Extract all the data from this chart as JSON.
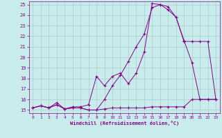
{
  "xlabel": "Windchill (Refroidissement éolien,°C)",
  "bg_color": "#c8ecec",
  "line_color": "#880088",
  "grid_color": "#aacccc",
  "xlim": [
    -0.5,
    23.5
  ],
  "ylim": [
    14.7,
    25.3
  ],
  "xticks": [
    0,
    1,
    2,
    3,
    4,
    5,
    6,
    7,
    8,
    9,
    10,
    11,
    12,
    13,
    14,
    15,
    16,
    17,
    18,
    19,
    20,
    21,
    22,
    23
  ],
  "yticks": [
    15,
    16,
    17,
    18,
    19,
    20,
    21,
    22,
    23,
    24,
    25
  ],
  "line1_x": [
    0,
    1,
    2,
    3,
    4,
    5,
    6,
    7,
    8,
    9,
    10,
    11,
    12,
    13,
    14,
    15,
    16,
    17,
    18,
    19,
    20,
    21,
    22,
    23
  ],
  "line1_y": [
    15.2,
    15.4,
    15.2,
    15.5,
    15.1,
    15.2,
    15.2,
    15.0,
    15.0,
    15.1,
    15.2,
    15.2,
    15.2,
    15.2,
    15.2,
    15.3,
    15.3,
    15.3,
    15.3,
    15.3,
    16.0,
    16.0,
    16.0,
    16.0
  ],
  "line2_x": [
    0,
    1,
    2,
    3,
    4,
    5,
    6,
    7,
    8,
    9,
    10,
    11,
    12,
    13,
    14,
    15,
    16,
    17,
    18,
    19,
    20,
    21,
    22,
    23
  ],
  "line2_y": [
    15.2,
    15.4,
    15.2,
    15.5,
    15.1,
    15.2,
    15.2,
    15.0,
    15.0,
    16.0,
    17.3,
    18.3,
    19.6,
    21.0,
    22.2,
    24.7,
    25.0,
    24.8,
    23.8,
    21.5,
    21.5,
    21.5,
    21.5,
    16.0
  ],
  "line3_x": [
    0,
    1,
    2,
    3,
    4,
    5,
    6,
    7,
    8,
    9,
    10,
    11,
    12,
    13,
    14,
    15,
    16,
    17,
    18,
    19,
    20,
    21,
    22,
    23
  ],
  "line3_y": [
    15.2,
    15.4,
    15.2,
    15.7,
    15.1,
    15.3,
    15.3,
    15.5,
    18.2,
    17.3,
    18.2,
    18.5,
    17.5,
    18.5,
    20.5,
    25.1,
    25.0,
    24.5,
    23.8,
    21.6,
    19.5,
    16.0,
    16.0,
    16.0
  ]
}
